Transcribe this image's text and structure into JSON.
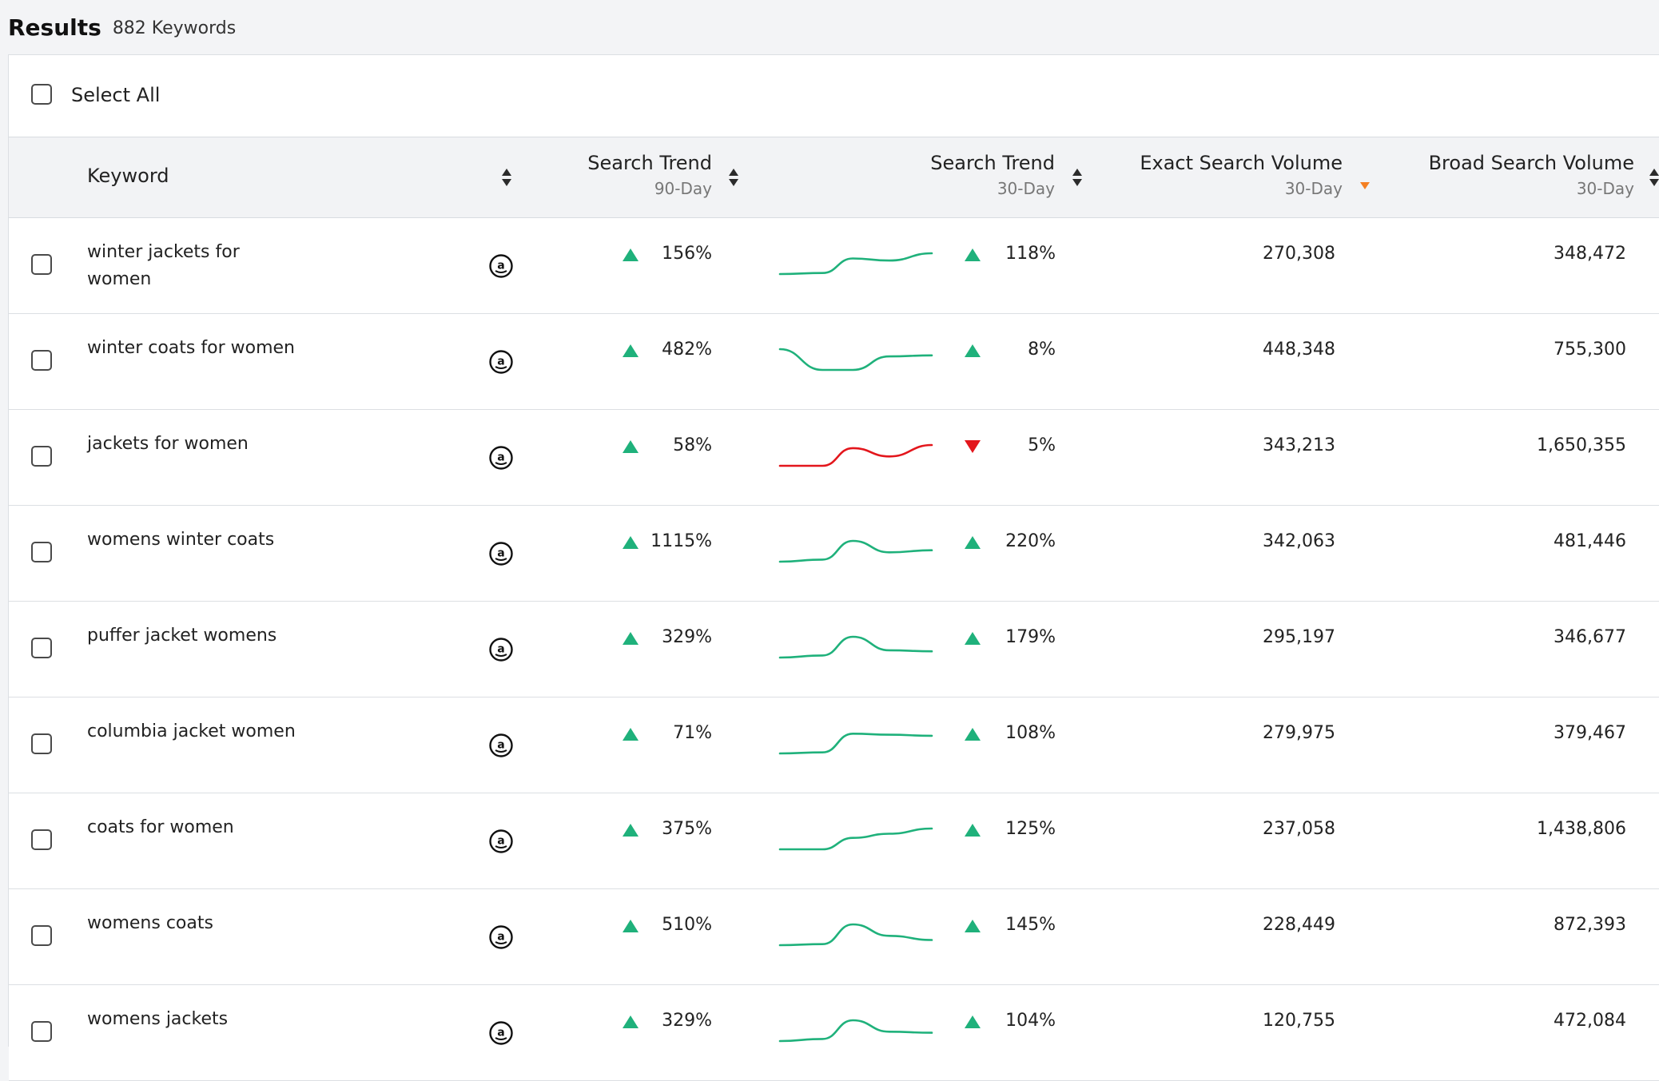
{
  "header": {
    "title": "Results",
    "count": "882 Keywords"
  },
  "select_all_label": "Select All",
  "columns": {
    "keyword": "Keyword",
    "trend90": {
      "title": "Search Trend",
      "sub": "90-Day"
    },
    "trend30": {
      "title": "Search Trend",
      "sub": "30-Day"
    },
    "exact": {
      "title": "Exact Search Volume",
      "sub": "30-Day"
    },
    "broad": {
      "title": "Broad Search Volume",
      "sub": "30-Day"
    }
  },
  "colors": {
    "up": "#1fb17b",
    "down": "#e3161c",
    "sort_active": "#f47f22"
  },
  "rows": [
    {
      "keyword": "winter jackets for women",
      "trend90": "156%",
      "trend30": "118%",
      "trend30_dir": "up",
      "exact": "270,308",
      "broad": "348,472",
      "spark": [
        0.0,
        0.05,
        0.75,
        0.65,
        1.0
      ]
    },
    {
      "keyword": "winter coats for women",
      "trend90": "482%",
      "trend30": "8%",
      "trend30_dir": "up",
      "exact": "448,348",
      "broad": "755,300",
      "spark": [
        1.0,
        0.0,
        0.0,
        0.65,
        0.7
      ]
    },
    {
      "keyword": "jackets for women",
      "trend90": "58%",
      "trend30": "5%",
      "trend30_dir": "down",
      "exact": "343,213",
      "broad": "1,650,355",
      "spark": [
        0.0,
        0.0,
        0.85,
        0.45,
        1.0
      ]
    },
    {
      "keyword": "womens winter coats",
      "trend90": "1115%",
      "trend30": "220%",
      "trend30_dir": "up",
      "exact": "342,063",
      "broad": "481,446",
      "spark": [
        0.0,
        0.1,
        1.0,
        0.45,
        0.55
      ]
    },
    {
      "keyword": "puffer jacket womens",
      "trend90": "329%",
      "trend30": "179%",
      "trend30_dir": "up",
      "exact": "295,197",
      "broad": "346,677",
      "spark": [
        0.0,
        0.1,
        1.0,
        0.35,
        0.3
      ]
    },
    {
      "keyword": "columbia jacket women",
      "trend90": "71%",
      "trend30": "108%",
      "trend30_dir": "up",
      "exact": "279,975",
      "broad": "379,467",
      "spark": [
        0.0,
        0.05,
        0.95,
        0.9,
        0.85
      ]
    },
    {
      "keyword": "coats for women",
      "trend90": "375%",
      "trend30": "125%",
      "trend30_dir": "up",
      "exact": "237,058",
      "broad": "1,438,806",
      "spark": [
        0.0,
        0.0,
        0.55,
        0.75,
        1.0
      ]
    },
    {
      "keyword": "womens coats",
      "trend90": "510%",
      "trend30": "145%",
      "trend30_dir": "up",
      "exact": "228,449",
      "broad": "872,393",
      "spark": [
        0.0,
        0.05,
        1.0,
        0.45,
        0.25
      ]
    },
    {
      "keyword": "womens jackets",
      "trend90": "329%",
      "trend30": "104%",
      "trend30_dir": "up",
      "exact": "120,755",
      "broad": "472,084",
      "spark": [
        0.0,
        0.1,
        1.0,
        0.45,
        0.4
      ]
    }
  ]
}
